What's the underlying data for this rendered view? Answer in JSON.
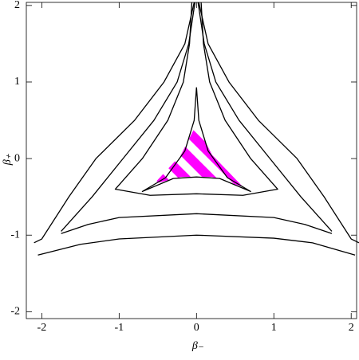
{
  "chart_data": {
    "type": "contour",
    "x_label": "β₋",
    "y_label": "β₊",
    "xlim": [
      -2.2,
      2.07
    ],
    "ylim": [
      -2.09,
      2.04
    ],
    "xticks": [
      -2,
      -1,
      0,
      1,
      2
    ],
    "yticks": [
      -2,
      -1,
      0,
      1,
      2
    ],
    "line_color": "#000000",
    "hatch_color": "#ff00ff",
    "lines": [
      {
        "x": [
          -0.03,
          -0.15,
          -0.42,
          -0.8,
          -1.3,
          -1.65,
          -2.0,
          -2.1
        ],
        "y": [
          2.04,
          1.5,
          1.0,
          0.5,
          0.0,
          -0.5,
          -1.05,
          -1.1
        ]
      },
      {
        "x": [
          0.03,
          0.15,
          0.42,
          0.8,
          1.3,
          1.65,
          2.0,
          2.1
        ],
        "y": [
          2.04,
          1.5,
          1.0,
          0.5,
          0.0,
          -0.5,
          -1.05,
          -1.1
        ]
      },
      {
        "x": [
          -0.02,
          -0.1,
          -0.25,
          -0.55,
          -0.95,
          -1.35,
          -1.75
        ],
        "y": [
          2.04,
          1.5,
          1.0,
          0.5,
          0.0,
          -0.5,
          -0.95
        ]
      },
      {
        "x": [
          0.02,
          0.1,
          0.25,
          0.55,
          0.95,
          1.35,
          1.75
        ],
        "y": [
          2.04,
          1.5,
          1.0,
          0.5,
          0.0,
          -0.5,
          -0.95
        ]
      },
      {
        "x": [
          -0.06,
          -0.09,
          -0.17,
          -0.37,
          -0.7,
          -1.05,
          -0.6,
          0,
          0.6,
          1.05,
          0.7,
          0.37,
          0.17,
          0.09,
          0.06
        ],
        "y": [
          2.04,
          1.5,
          1.0,
          0.5,
          0.0,
          -0.4,
          -0.48,
          -0.46,
          -0.48,
          -0.4,
          0.0,
          0.5,
          1.0,
          1.5,
          2.04
        ]
      },
      {
        "x": [
          -1.75,
          -1.4,
          -1.0,
          0,
          1.0,
          1.4,
          1.75
        ],
        "y": [
          -0.98,
          -0.86,
          -0.77,
          -0.72,
          -0.77,
          -0.86,
          -0.98
        ]
      },
      {
        "x": [
          -2.05,
          -1.5,
          -1.0,
          0,
          1.0,
          1.5,
          2.05
        ],
        "y": [
          -1.26,
          -1.12,
          -1.05,
          -1.0,
          -1.04,
          -1.1,
          -1.26
        ]
      },
      {
        "x": [
          0,
          -0.03,
          -0.15,
          -0.4,
          -0.7,
          -0.3,
          0,
          0.3,
          0.7,
          0.4,
          0.15,
          0.03,
          0
        ],
        "y": [
          0.93,
          0.5,
          0.1,
          -0.25,
          -0.43,
          -0.26,
          -0.24,
          -0.26,
          -0.43,
          -0.25,
          0.1,
          0.5,
          0.93
        ]
      }
    ],
    "hatched_region": {
      "x": [
        0,
        -0.2,
        -0.55,
        -0.2,
        0.2,
        0.6,
        0.2
      ],
      "y": [
        0.45,
        0.05,
        -0.33,
        -0.24,
        -0.24,
        -0.37,
        0.05
      ]
    }
  }
}
